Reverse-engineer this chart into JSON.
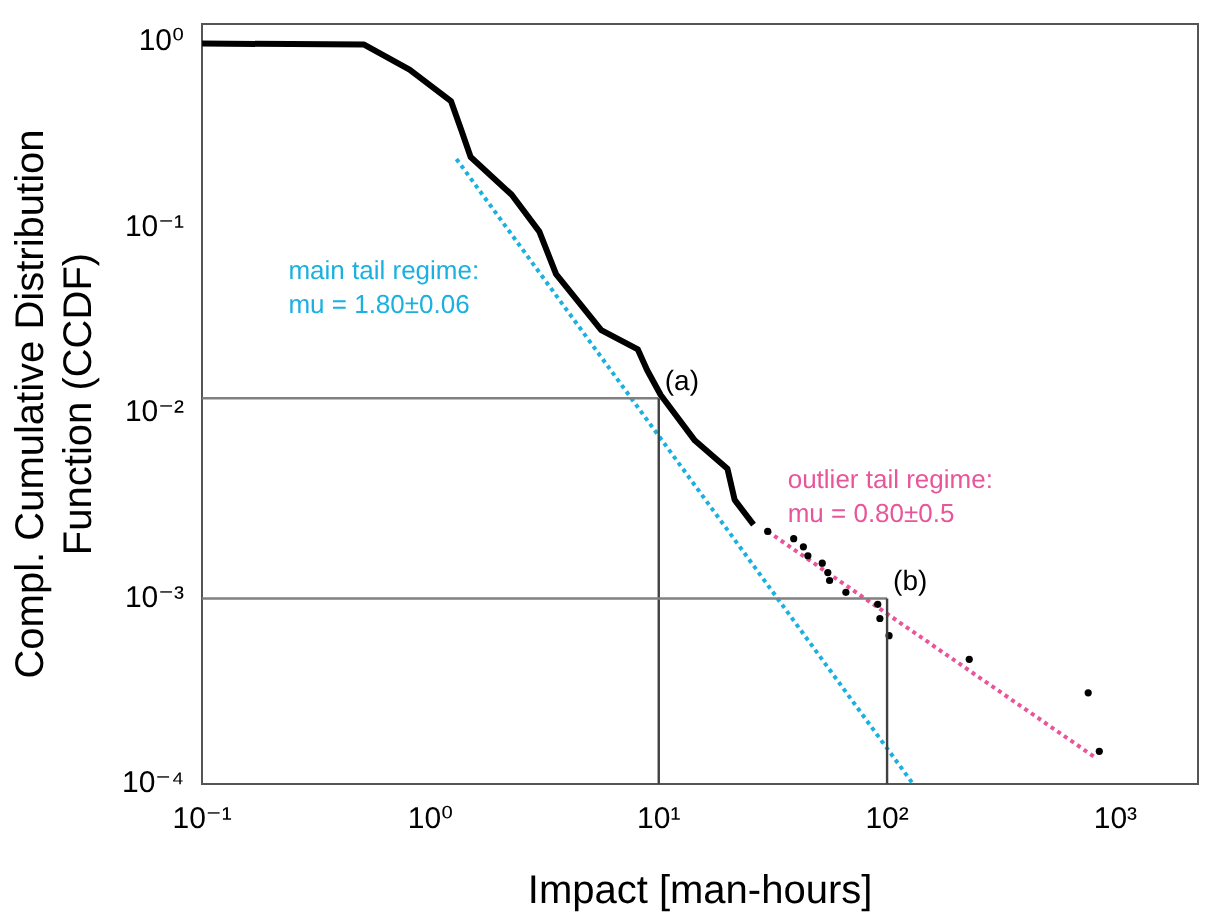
{
  "chart_data": {
    "type": "line",
    "xlabel": "Impact [man-hours]",
    "ylabel": "Compl. Cumulative Distribution Function (CCDF)",
    "log": "xy",
    "xlim": [
      0.1,
      2300
    ],
    "ylim": [
      0.0001,
      1.25
    ],
    "xticks": [
      {
        "value": 0.1,
        "label": "10⁻¹"
      },
      {
        "value": 1,
        "label": "10⁰"
      },
      {
        "value": 10,
        "label": "10¹"
      },
      {
        "value": 100,
        "label": "10²"
      },
      {
        "value": 1000,
        "label": "10³"
      }
    ],
    "yticks": [
      {
        "value": 0.0001,
        "label": "10⁻⁴"
      },
      {
        "value": 0.001,
        "label": "10⁻³"
      },
      {
        "value": 0.01,
        "label": "10⁻²"
      },
      {
        "value": 0.1,
        "label": "10⁻¹"
      },
      {
        "value": 1,
        "label": "10⁰"
      }
    ],
    "series": [
      {
        "type": "line",
        "color": "#000000",
        "marker": "none",
        "x": [
          0.1,
          0.51,
          0.81,
          1.23,
          1.36,
          1.5,
          2.27,
          3.0,
          3.55,
          5.6,
          8.1,
          8.9,
          10.2,
          14.4,
          20,
          21.5,
          26
        ],
        "values": [
          0.98,
          0.97,
          0.71,
          0.48,
          0.34,
          0.24,
          0.15,
          0.095,
          0.056,
          0.028,
          0.022,
          0.017,
          0.0125,
          0.0071,
          0.005,
          0.0034,
          0.0025
        ]
      },
      {
        "type": "scatter",
        "color": "#000000",
        "marker": "circle",
        "x": [
          30,
          39,
          43,
          45,
          52,
          55,
          56,
          66,
          91,
          93,
          102,
          229,
          760,
          850
        ],
        "values": [
          0.0023,
          0.0021,
          0.0019,
          0.0017,
          0.00155,
          0.00138,
          0.00125,
          0.00108,
          0.00093,
          0.00078,
          0.00063,
          0.00047,
          0.00031,
          0.00015
        ]
      },
      {
        "type": "line",
        "name": "main tail regime: mu = 1.80±0.06",
        "color": "#1ab0e0",
        "marker": "none",
        "line_style": "dotted",
        "x": [
          1.3,
          130
        ],
        "values": [
          0.234,
          0.0001
        ]
      },
      {
        "type": "line",
        "name": "outlier tail regime: mu = 0.80±0.5",
        "color": "#e8559a",
        "marker": "none",
        "line_style": "dotted",
        "x": [
          30,
          830
        ],
        "values": [
          0.0023,
          0.000137
        ]
      }
    ],
    "ref_lines": [
      {
        "axis": "y",
        "value": 0.012,
        "color": "#808080"
      },
      {
        "axis": "x",
        "value": 10,
        "color": "#404040"
      },
      {
        "axis": "y",
        "value": 0.001,
        "color": "#808080"
      },
      {
        "axis": "x",
        "value": 100,
        "color": "#404040"
      }
    ],
    "annotations": [
      {
        "text": "(a)",
        "x": 10,
        "y": 0.012
      },
      {
        "text": "(b)",
        "x": 100,
        "y": 0.001
      }
    ]
  }
}
